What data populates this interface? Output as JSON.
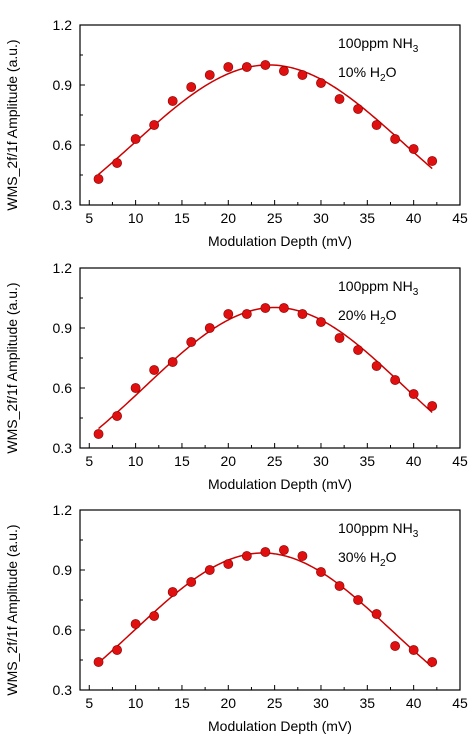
{
  "chart_data": [
    {
      "type": "scatter",
      "xlabel": "Modulation Depth (mV)",
      "ylabel": "WMS_2f/1f Amplitude (a.u.)",
      "xlim": [
        4,
        45
      ],
      "ylim": [
        0.3,
        1.2
      ],
      "xticks": [
        "5",
        "10",
        "15",
        "20",
        "25",
        "30",
        "35",
        "40",
        "45"
      ],
      "yticks": [
        "0.3",
        "0.6",
        "0.9",
        "1.2"
      ],
      "annotation_line1": "100ppm NH",
      "annotation_line1_sub": "3",
      "annotation_line2": "10% H",
      "annotation_line2_sub": "2",
      "annotation_line2_end": "O",
      "marker_color": "#e01010",
      "fit_color": "#cc0000",
      "series": [
        {
          "x": [
            6,
            8,
            10,
            12,
            14,
            16,
            18,
            20,
            22,
            24,
            26,
            28,
            30,
            32,
            34,
            36,
            38,
            40,
            42
          ],
          "y": [
            0.43,
            0.51,
            0.63,
            0.7,
            0.82,
            0.89,
            0.95,
            0.99,
            0.99,
            1.0,
            0.97,
            0.95,
            0.91,
            0.83,
            0.78,
            0.7,
            0.63,
            0.58,
            0.52
          ]
        }
      ]
    },
    {
      "type": "scatter",
      "xlabel": "Modulation Depth (mV)",
      "ylabel": "WMS_2f/1f Amplitude (a.u.)",
      "xlim": [
        4,
        45
      ],
      "ylim": [
        0.3,
        1.2
      ],
      "xticks": [
        "5",
        "10",
        "15",
        "20",
        "25",
        "30",
        "35",
        "40",
        "45"
      ],
      "yticks": [
        "0.3",
        "0.6",
        "0.9",
        "1.2"
      ],
      "annotation_line1": "100ppm NH",
      "annotation_line1_sub": "3",
      "annotation_line2": "20% H",
      "annotation_line2_sub": "2",
      "annotation_line2_end": "O",
      "marker_color": "#e01010",
      "fit_color": "#cc0000",
      "series": [
        {
          "x": [
            6,
            8,
            10,
            12,
            14,
            16,
            18,
            20,
            22,
            24,
            26,
            28,
            30,
            32,
            34,
            36,
            38,
            40,
            42
          ],
          "y": [
            0.37,
            0.46,
            0.6,
            0.69,
            0.73,
            0.83,
            0.9,
            0.97,
            0.97,
            1.0,
            1.0,
            0.97,
            0.93,
            0.85,
            0.79,
            0.71,
            0.64,
            0.57,
            0.51
          ]
        }
      ]
    },
    {
      "type": "scatter",
      "xlabel": "Modulation Depth (mV)",
      "ylabel": "WMS_2f/1f Amplitude (a.u.)",
      "xlim": [
        4,
        45
      ],
      "ylim": [
        0.3,
        1.2
      ],
      "xticks": [
        "5",
        "10",
        "15",
        "20",
        "25",
        "30",
        "35",
        "40",
        "45"
      ],
      "yticks": [
        "0.3",
        "0.6",
        "0.9",
        "1.2"
      ],
      "annotation_line1": "100ppm NH",
      "annotation_line1_sub": "3",
      "annotation_line2": "30% H",
      "annotation_line2_sub": "2",
      "annotation_line2_end": "O",
      "marker_color": "#e01010",
      "fit_color": "#cc0000",
      "series": [
        {
          "x": [
            6,
            8,
            10,
            12,
            14,
            16,
            18,
            20,
            22,
            24,
            26,
            28,
            30,
            32,
            34,
            36,
            38,
            40,
            42
          ],
          "y": [
            0.44,
            0.5,
            0.63,
            0.67,
            0.79,
            0.84,
            0.9,
            0.93,
            0.97,
            0.99,
            1.0,
            0.97,
            0.89,
            0.82,
            0.75,
            0.68,
            0.52,
            0.5,
            0.44
          ]
        }
      ]
    }
  ]
}
